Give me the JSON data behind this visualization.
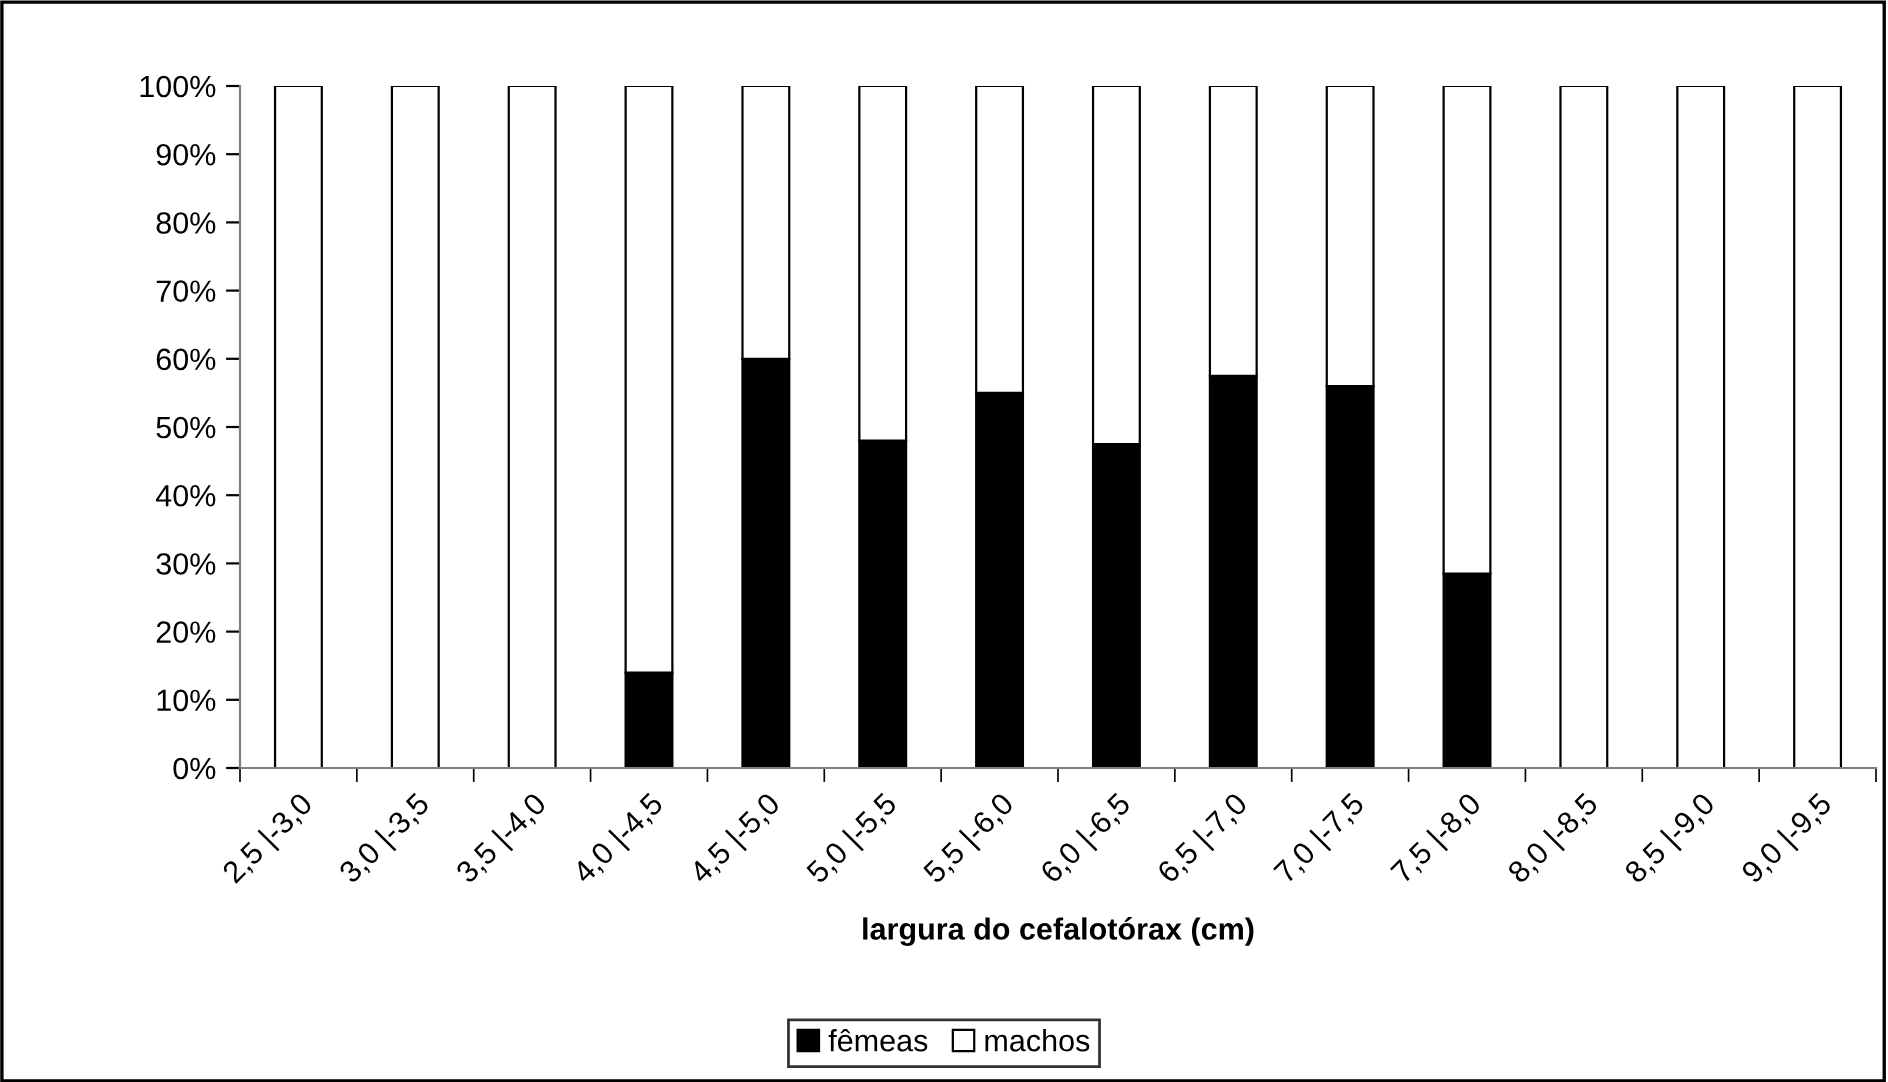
{
  "chart_data": {
    "type": "bar",
    "stacked": true,
    "xlabel": "largura do cefalotórax (cm)",
    "categories": [
      "2,5 |-3,0",
      "3,0 |-3,5",
      "3,5 |-4,0",
      "4,0 |-4,5",
      "4,5 |-5,0",
      "5,0 |-5,5",
      "5,5 |-6,0",
      "6,0 |-6,5",
      "6,5 |-7,0",
      "7,0 |-7,5",
      "7,5 |-8,0",
      "8,0 |-8,5",
      "8,5 |-9,0",
      "9,0 |-9,5"
    ],
    "series": [
      {
        "name": "fêmeas",
        "color": "#000000",
        "values": [
          0,
          0,
          0,
          14,
          60,
          48,
          55,
          47.5,
          57.5,
          56,
          28.5,
          0,
          0,
          0
        ]
      },
      {
        "name": "machos",
        "color": "#ffffff",
        "values": [
          100,
          100,
          100,
          86,
          40,
          52,
          45,
          52.5,
          42.5,
          44,
          71.5,
          100,
          100,
          100
        ]
      }
    ],
    "ylim": [
      0,
      100
    ],
    "yticks": [
      {
        "value": 0,
        "label": "0%"
      },
      {
        "value": 10,
        "label": "10%"
      },
      {
        "value": 20,
        "label": "20%"
      },
      {
        "value": 30,
        "label": "30%"
      },
      {
        "value": 40,
        "label": "40%"
      },
      {
        "value": 50,
        "label": "50%"
      },
      {
        "value": 60,
        "label": "60%"
      },
      {
        "value": 70,
        "label": "70%"
      },
      {
        "value": 80,
        "label": "80%"
      },
      {
        "value": 90,
        "label": "90%"
      },
      {
        "value": 100,
        "label": "100%"
      }
    ],
    "grid": false,
    "legend": "bottom"
  }
}
